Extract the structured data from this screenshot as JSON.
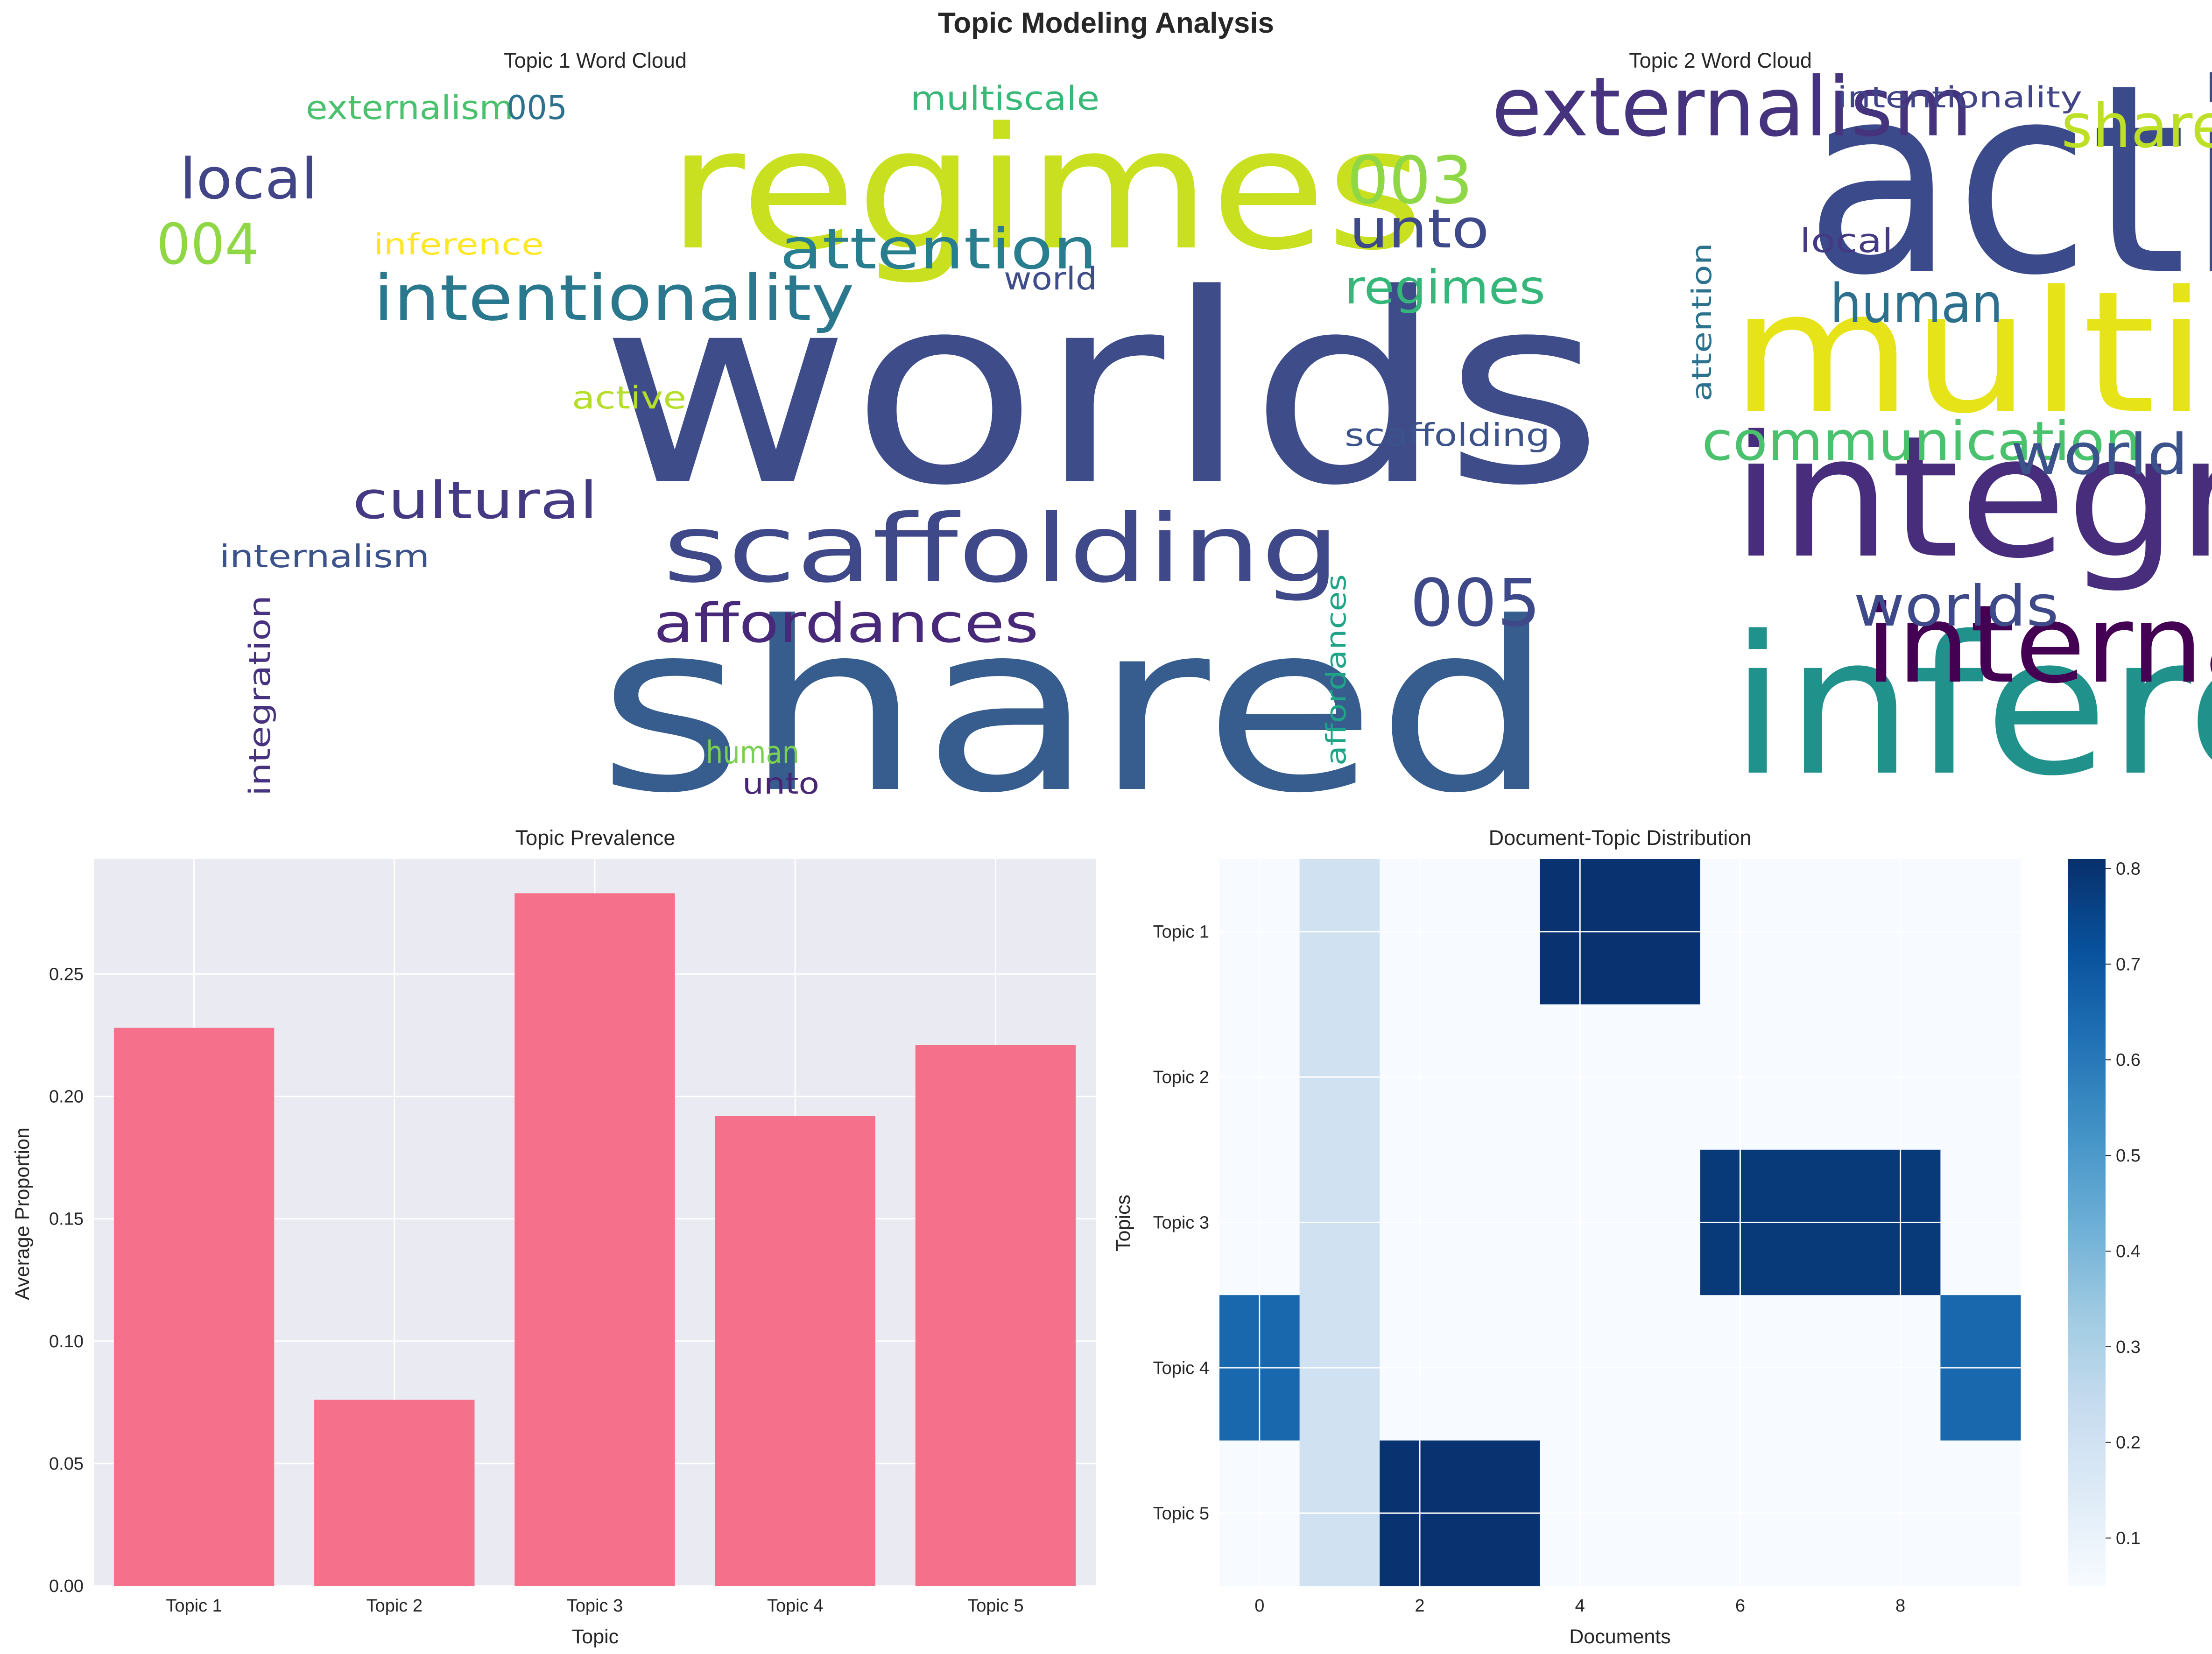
{
  "figure_title": "Topic Modeling Analysis",
  "chart_data": [
    {
      "type": "wordcloud",
      "title": "Topic 1 Word Cloud",
      "words": [
        {
          "text": "worlds",
          "color": "#3e4c8a"
        },
        {
          "text": "shared",
          "color": "#365d8d"
        },
        {
          "text": "regimes",
          "color": "#c8e020"
        },
        {
          "text": "scaffolding",
          "color": "#3f4889"
        },
        {
          "text": "intentionality",
          "color": "#2a788e"
        },
        {
          "text": "attention",
          "color": "#287d8e"
        },
        {
          "text": "affordances",
          "color": "#482878"
        },
        {
          "text": "local",
          "color": "#414487"
        },
        {
          "text": "cultural",
          "color": "#443983"
        },
        {
          "text": "004",
          "color": "#8fd744"
        },
        {
          "text": "externalism",
          "color": "#4ac16d"
        },
        {
          "text": "005",
          "color": "#2c728e"
        },
        {
          "text": "multiscale",
          "color": "#38b977"
        },
        {
          "text": "inference",
          "color": "#fde725"
        },
        {
          "text": "world",
          "color": "#3e4c8a"
        },
        {
          "text": "active",
          "color": "#b5de2b"
        },
        {
          "text": "internalism",
          "color": "#3b528b"
        },
        {
          "text": "integration",
          "color": "#46327e"
        },
        {
          "text": "human",
          "color": "#7ad151"
        },
        {
          "text": "unto",
          "color": "#482475"
        }
      ]
    },
    {
      "type": "wordcloud",
      "title": "Topic 2 Word Cloud",
      "words": [
        {
          "text": "active",
          "color": "#3b4a8a"
        },
        {
          "text": "multiscale",
          "color": "#e6e419"
        },
        {
          "text": "integration",
          "color": "#472d7b"
        },
        {
          "text": "inference",
          "color": "#21918c"
        },
        {
          "text": "internalism",
          "color": "#440154"
        },
        {
          "text": "externalism",
          "color": "#46337e"
        },
        {
          "text": "shared",
          "color": "#bddf26"
        },
        {
          "text": "003",
          "color": "#8fd744"
        },
        {
          "text": "unto",
          "color": "#3e4989"
        },
        {
          "text": "regimes",
          "color": "#35b779"
        },
        {
          "text": "human",
          "color": "#2d708e"
        },
        {
          "text": "local",
          "color": "#443a83"
        },
        {
          "text": "attention",
          "color": "#2c728e"
        },
        {
          "text": "communication",
          "color": "#4ac16d"
        },
        {
          "text": "scaffolding",
          "color": "#3b528b"
        },
        {
          "text": "world",
          "color": "#3b528b"
        },
        {
          "text": "005",
          "color": "#3e4989"
        },
        {
          "text": "worlds",
          "color": "#3e4989"
        },
        {
          "text": "affordances",
          "color": "#20a486"
        },
        {
          "text": "intentionality",
          "color": "#414487"
        }
      ]
    },
    {
      "type": "bar",
      "title": "Topic Prevalence",
      "categories": [
        "Topic 1",
        "Topic 2",
        "Topic 3",
        "Topic 4",
        "Topic 5"
      ],
      "values": [
        0.228,
        0.076,
        0.283,
        0.192,
        0.221
      ],
      "xlabel": "Topic",
      "ylabel": "Average Proportion",
      "ylim": [
        0,
        0.297
      ],
      "yticks": [
        "0.00",
        "0.05",
        "0.10",
        "0.15",
        "0.20",
        "0.25"
      ],
      "bar_color": "#f5708a",
      "background": "#eaeaf2",
      "grid": true
    },
    {
      "type": "heatmap",
      "title": "Document-Topic Distribution",
      "xlabel": "Documents",
      "ylabel": "Topics",
      "rows": [
        "Topic 1",
        "Topic 2",
        "Topic 3",
        "Topic 4",
        "Topic 5"
      ],
      "xticks": [
        "0",
        "2",
        "4",
        "6",
        "8"
      ],
      "values": [
        [
          0.05,
          0.2,
          0.05,
          0.05,
          0.8,
          0.8,
          0.05,
          0.05,
          0.05,
          0.05
        ],
        [
          0.05,
          0.2,
          0.05,
          0.05,
          0.05,
          0.05,
          0.05,
          0.05,
          0.05,
          0.05
        ],
        [
          0.05,
          0.2,
          0.05,
          0.05,
          0.05,
          0.05,
          0.78,
          0.78,
          0.78,
          0.05
        ],
        [
          0.65,
          0.2,
          0.05,
          0.05,
          0.05,
          0.05,
          0.05,
          0.05,
          0.05,
          0.65
        ],
        [
          0.05,
          0.2,
          0.8,
          0.8,
          0.05,
          0.05,
          0.05,
          0.05,
          0.05,
          0.05
        ]
      ],
      "colormap": "Blues",
      "vmin": 0.05,
      "vmax": 0.81,
      "colorbar_ticks": [
        "0.1",
        "0.2",
        "0.3",
        "0.4",
        "0.5",
        "0.6",
        "0.7",
        "0.8"
      ]
    }
  ]
}
